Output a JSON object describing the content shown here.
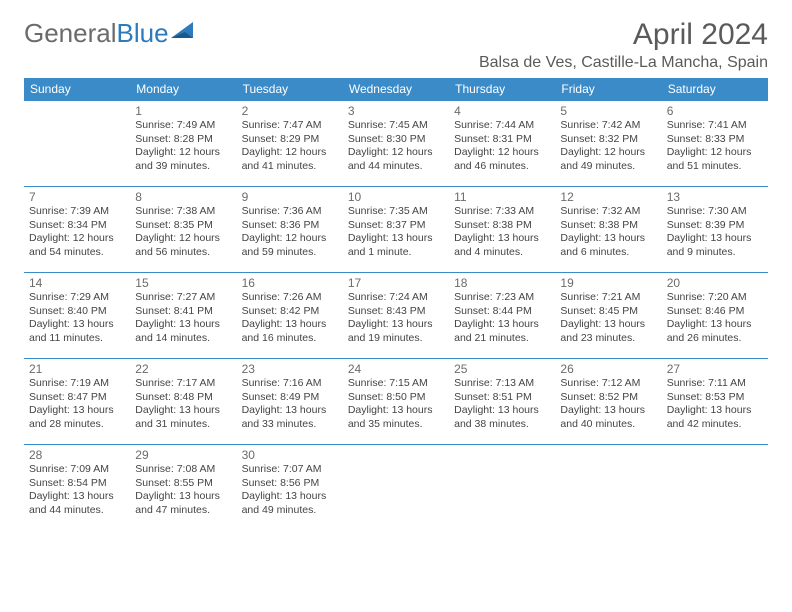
{
  "brand": {
    "part1": "General",
    "part2": "Blue"
  },
  "title": "April 2024",
  "location": "Balsa de Ves, Castille-La Mancha, Spain",
  "accent_color": "#3b8bc9",
  "text_color": "#444444",
  "day_headers": [
    "Sunday",
    "Monday",
    "Tuesday",
    "Wednesday",
    "Thursday",
    "Friday",
    "Saturday"
  ],
  "weeks": [
    [
      null,
      {
        "n": "1",
        "sr": "Sunrise: 7:49 AM",
        "ss": "Sunset: 8:28 PM",
        "d1": "Daylight: 12 hours",
        "d2": "and 39 minutes."
      },
      {
        "n": "2",
        "sr": "Sunrise: 7:47 AM",
        "ss": "Sunset: 8:29 PM",
        "d1": "Daylight: 12 hours",
        "d2": "and 41 minutes."
      },
      {
        "n": "3",
        "sr": "Sunrise: 7:45 AM",
        "ss": "Sunset: 8:30 PM",
        "d1": "Daylight: 12 hours",
        "d2": "and 44 minutes."
      },
      {
        "n": "4",
        "sr": "Sunrise: 7:44 AM",
        "ss": "Sunset: 8:31 PM",
        "d1": "Daylight: 12 hours",
        "d2": "and 46 minutes."
      },
      {
        "n": "5",
        "sr": "Sunrise: 7:42 AM",
        "ss": "Sunset: 8:32 PM",
        "d1": "Daylight: 12 hours",
        "d2": "and 49 minutes."
      },
      {
        "n": "6",
        "sr": "Sunrise: 7:41 AM",
        "ss": "Sunset: 8:33 PM",
        "d1": "Daylight: 12 hours",
        "d2": "and 51 minutes."
      }
    ],
    [
      {
        "n": "7",
        "sr": "Sunrise: 7:39 AM",
        "ss": "Sunset: 8:34 PM",
        "d1": "Daylight: 12 hours",
        "d2": "and 54 minutes."
      },
      {
        "n": "8",
        "sr": "Sunrise: 7:38 AM",
        "ss": "Sunset: 8:35 PM",
        "d1": "Daylight: 12 hours",
        "d2": "and 56 minutes."
      },
      {
        "n": "9",
        "sr": "Sunrise: 7:36 AM",
        "ss": "Sunset: 8:36 PM",
        "d1": "Daylight: 12 hours",
        "d2": "and 59 minutes."
      },
      {
        "n": "10",
        "sr": "Sunrise: 7:35 AM",
        "ss": "Sunset: 8:37 PM",
        "d1": "Daylight: 13 hours",
        "d2": "and 1 minute."
      },
      {
        "n": "11",
        "sr": "Sunrise: 7:33 AM",
        "ss": "Sunset: 8:38 PM",
        "d1": "Daylight: 13 hours",
        "d2": "and 4 minutes."
      },
      {
        "n": "12",
        "sr": "Sunrise: 7:32 AM",
        "ss": "Sunset: 8:38 PM",
        "d1": "Daylight: 13 hours",
        "d2": "and 6 minutes."
      },
      {
        "n": "13",
        "sr": "Sunrise: 7:30 AM",
        "ss": "Sunset: 8:39 PM",
        "d1": "Daylight: 13 hours",
        "d2": "and 9 minutes."
      }
    ],
    [
      {
        "n": "14",
        "sr": "Sunrise: 7:29 AM",
        "ss": "Sunset: 8:40 PM",
        "d1": "Daylight: 13 hours",
        "d2": "and 11 minutes."
      },
      {
        "n": "15",
        "sr": "Sunrise: 7:27 AM",
        "ss": "Sunset: 8:41 PM",
        "d1": "Daylight: 13 hours",
        "d2": "and 14 minutes."
      },
      {
        "n": "16",
        "sr": "Sunrise: 7:26 AM",
        "ss": "Sunset: 8:42 PM",
        "d1": "Daylight: 13 hours",
        "d2": "and 16 minutes."
      },
      {
        "n": "17",
        "sr": "Sunrise: 7:24 AM",
        "ss": "Sunset: 8:43 PM",
        "d1": "Daylight: 13 hours",
        "d2": "and 19 minutes."
      },
      {
        "n": "18",
        "sr": "Sunrise: 7:23 AM",
        "ss": "Sunset: 8:44 PM",
        "d1": "Daylight: 13 hours",
        "d2": "and 21 minutes."
      },
      {
        "n": "19",
        "sr": "Sunrise: 7:21 AM",
        "ss": "Sunset: 8:45 PM",
        "d1": "Daylight: 13 hours",
        "d2": "and 23 minutes."
      },
      {
        "n": "20",
        "sr": "Sunrise: 7:20 AM",
        "ss": "Sunset: 8:46 PM",
        "d1": "Daylight: 13 hours",
        "d2": "and 26 minutes."
      }
    ],
    [
      {
        "n": "21",
        "sr": "Sunrise: 7:19 AM",
        "ss": "Sunset: 8:47 PM",
        "d1": "Daylight: 13 hours",
        "d2": "and 28 minutes."
      },
      {
        "n": "22",
        "sr": "Sunrise: 7:17 AM",
        "ss": "Sunset: 8:48 PM",
        "d1": "Daylight: 13 hours",
        "d2": "and 31 minutes."
      },
      {
        "n": "23",
        "sr": "Sunrise: 7:16 AM",
        "ss": "Sunset: 8:49 PM",
        "d1": "Daylight: 13 hours",
        "d2": "and 33 minutes."
      },
      {
        "n": "24",
        "sr": "Sunrise: 7:15 AM",
        "ss": "Sunset: 8:50 PM",
        "d1": "Daylight: 13 hours",
        "d2": "and 35 minutes."
      },
      {
        "n": "25",
        "sr": "Sunrise: 7:13 AM",
        "ss": "Sunset: 8:51 PM",
        "d1": "Daylight: 13 hours",
        "d2": "and 38 minutes."
      },
      {
        "n": "26",
        "sr": "Sunrise: 7:12 AM",
        "ss": "Sunset: 8:52 PM",
        "d1": "Daylight: 13 hours",
        "d2": "and 40 minutes."
      },
      {
        "n": "27",
        "sr": "Sunrise: 7:11 AM",
        "ss": "Sunset: 8:53 PM",
        "d1": "Daylight: 13 hours",
        "d2": "and 42 minutes."
      }
    ],
    [
      {
        "n": "28",
        "sr": "Sunrise: 7:09 AM",
        "ss": "Sunset: 8:54 PM",
        "d1": "Daylight: 13 hours",
        "d2": "and 44 minutes."
      },
      {
        "n": "29",
        "sr": "Sunrise: 7:08 AM",
        "ss": "Sunset: 8:55 PM",
        "d1": "Daylight: 13 hours",
        "d2": "and 47 minutes."
      },
      {
        "n": "30",
        "sr": "Sunrise: 7:07 AM",
        "ss": "Sunset: 8:56 PM",
        "d1": "Daylight: 13 hours",
        "d2": "and 49 minutes."
      },
      null,
      null,
      null,
      null
    ]
  ]
}
